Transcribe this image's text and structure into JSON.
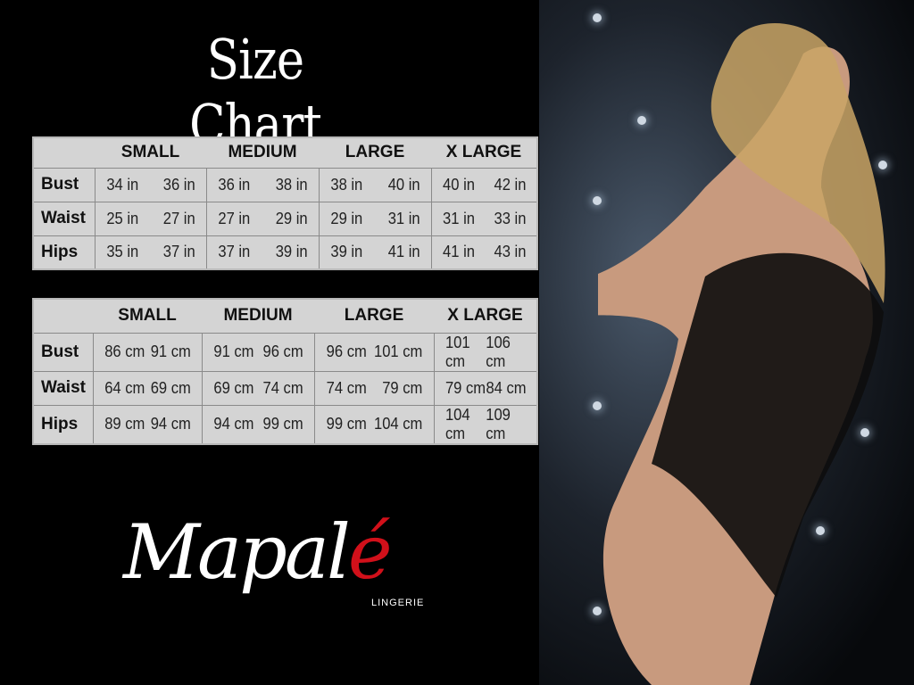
{
  "title": "Size Chart",
  "sizes": [
    "SMALL",
    "MEDIUM",
    "LARGE",
    "X LARGE"
  ],
  "inches_table": {
    "rows": [
      {
        "label": "Bust",
        "values": [
          [
            "34 in",
            "36 in"
          ],
          [
            "36 in",
            "38 in"
          ],
          [
            "38 in",
            "40 in"
          ],
          [
            "40 in",
            "42 in"
          ]
        ]
      },
      {
        "label": "Waist",
        "values": [
          [
            "25 in",
            "27 in"
          ],
          [
            "27 in",
            "29 in"
          ],
          [
            "29 in",
            "31 in"
          ],
          [
            "31 in",
            "33 in"
          ]
        ]
      },
      {
        "label": "Hips",
        "values": [
          [
            "35 in",
            "37 in"
          ],
          [
            "37 in",
            "39 in"
          ],
          [
            "39 in",
            "41 in"
          ],
          [
            "41 in",
            "43 in"
          ]
        ]
      }
    ]
  },
  "cm_table": {
    "rows": [
      {
        "label": "Bust",
        "values": [
          [
            "86 cm",
            "91 cm"
          ],
          [
            "91 cm",
            "96 cm"
          ],
          [
            "96 cm",
            "101 cm"
          ],
          [
            "101 cm",
            "106 cm"
          ]
        ]
      },
      {
        "label": "Waist",
        "values": [
          [
            "64 cm",
            "69 cm"
          ],
          [
            "69 cm",
            "74 cm"
          ],
          [
            "74 cm",
            "79 cm"
          ],
          [
            "79 cm",
            "84 cm"
          ]
        ]
      },
      {
        "label": "Hips",
        "values": [
          [
            "89 cm",
            "94 cm"
          ],
          [
            "94 cm",
            "99 cm"
          ],
          [
            "99 cm",
            "104 cm"
          ],
          [
            "104 cm",
            "109 cm"
          ]
        ]
      }
    ]
  },
  "logo": {
    "text_main": "Mapal",
    "text_accent": "é",
    "subtitle": "LINGERIE",
    "accent_color": "#d1101a"
  }
}
